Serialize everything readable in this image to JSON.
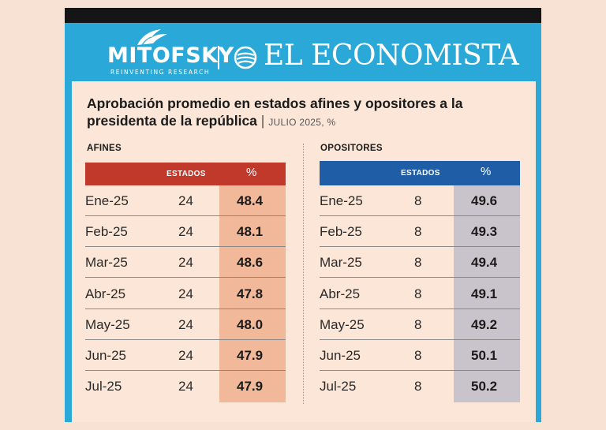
{
  "header": {
    "brand_left": "MITOFSKY",
    "brand_left_tagline": "REINVENTING RESEARCH",
    "brand_right": "EL ECONOMISTA"
  },
  "title": {
    "main": "Aprobación promedio en estados afines y opositores a la presidenta de la república",
    "separator": "|",
    "sub": "JULIO 2025, %"
  },
  "colors": {
    "frame_blue": "#2aa9d8",
    "afines_header": "#c0392b",
    "afines_pct_cell": "#f1b99a",
    "opositores_header": "#1f5ea6",
    "opositores_pct_cell": "#c9c3cb"
  },
  "chart_data": [
    {
      "type": "table",
      "name": "AFINES",
      "columns": [
        "",
        "ESTADOS",
        "%"
      ],
      "rows": [
        {
          "mes": "Ene-25",
          "estados": "24",
          "pct": "48.4"
        },
        {
          "mes": "Feb-25",
          "estados": "24",
          "pct": "48.1"
        },
        {
          "mes": "Mar-25",
          "estados": "24",
          "pct": "48.6"
        },
        {
          "mes": "Abr-25",
          "estados": "24",
          "pct": "47.8"
        },
        {
          "mes": "May-25",
          "estados": "24",
          "pct": "48.0"
        },
        {
          "mes": "Jun-25",
          "estados": "24",
          "pct": "47.9"
        },
        {
          "mes": "Jul-25",
          "estados": "24",
          "pct": "47.9"
        }
      ]
    },
    {
      "type": "table",
      "name": "OPOSITORES",
      "columns": [
        "",
        "ESTADOS",
        "%"
      ],
      "rows": [
        {
          "mes": "Ene-25",
          "estados": "8",
          "pct": "49.6"
        },
        {
          "mes": "Feb-25",
          "estados": "8",
          "pct": "49.3"
        },
        {
          "mes": "Mar-25",
          "estados": "8",
          "pct": "49.4"
        },
        {
          "mes": "Abr-25",
          "estados": "8",
          "pct": "49.1"
        },
        {
          "mes": "May-25",
          "estados": "8",
          "pct": "49.2"
        },
        {
          "mes": "Jun-25",
          "estados": "8",
          "pct": "50.1"
        },
        {
          "mes": "Jul-25",
          "estados": "8",
          "pct": "50.2"
        }
      ]
    }
  ]
}
